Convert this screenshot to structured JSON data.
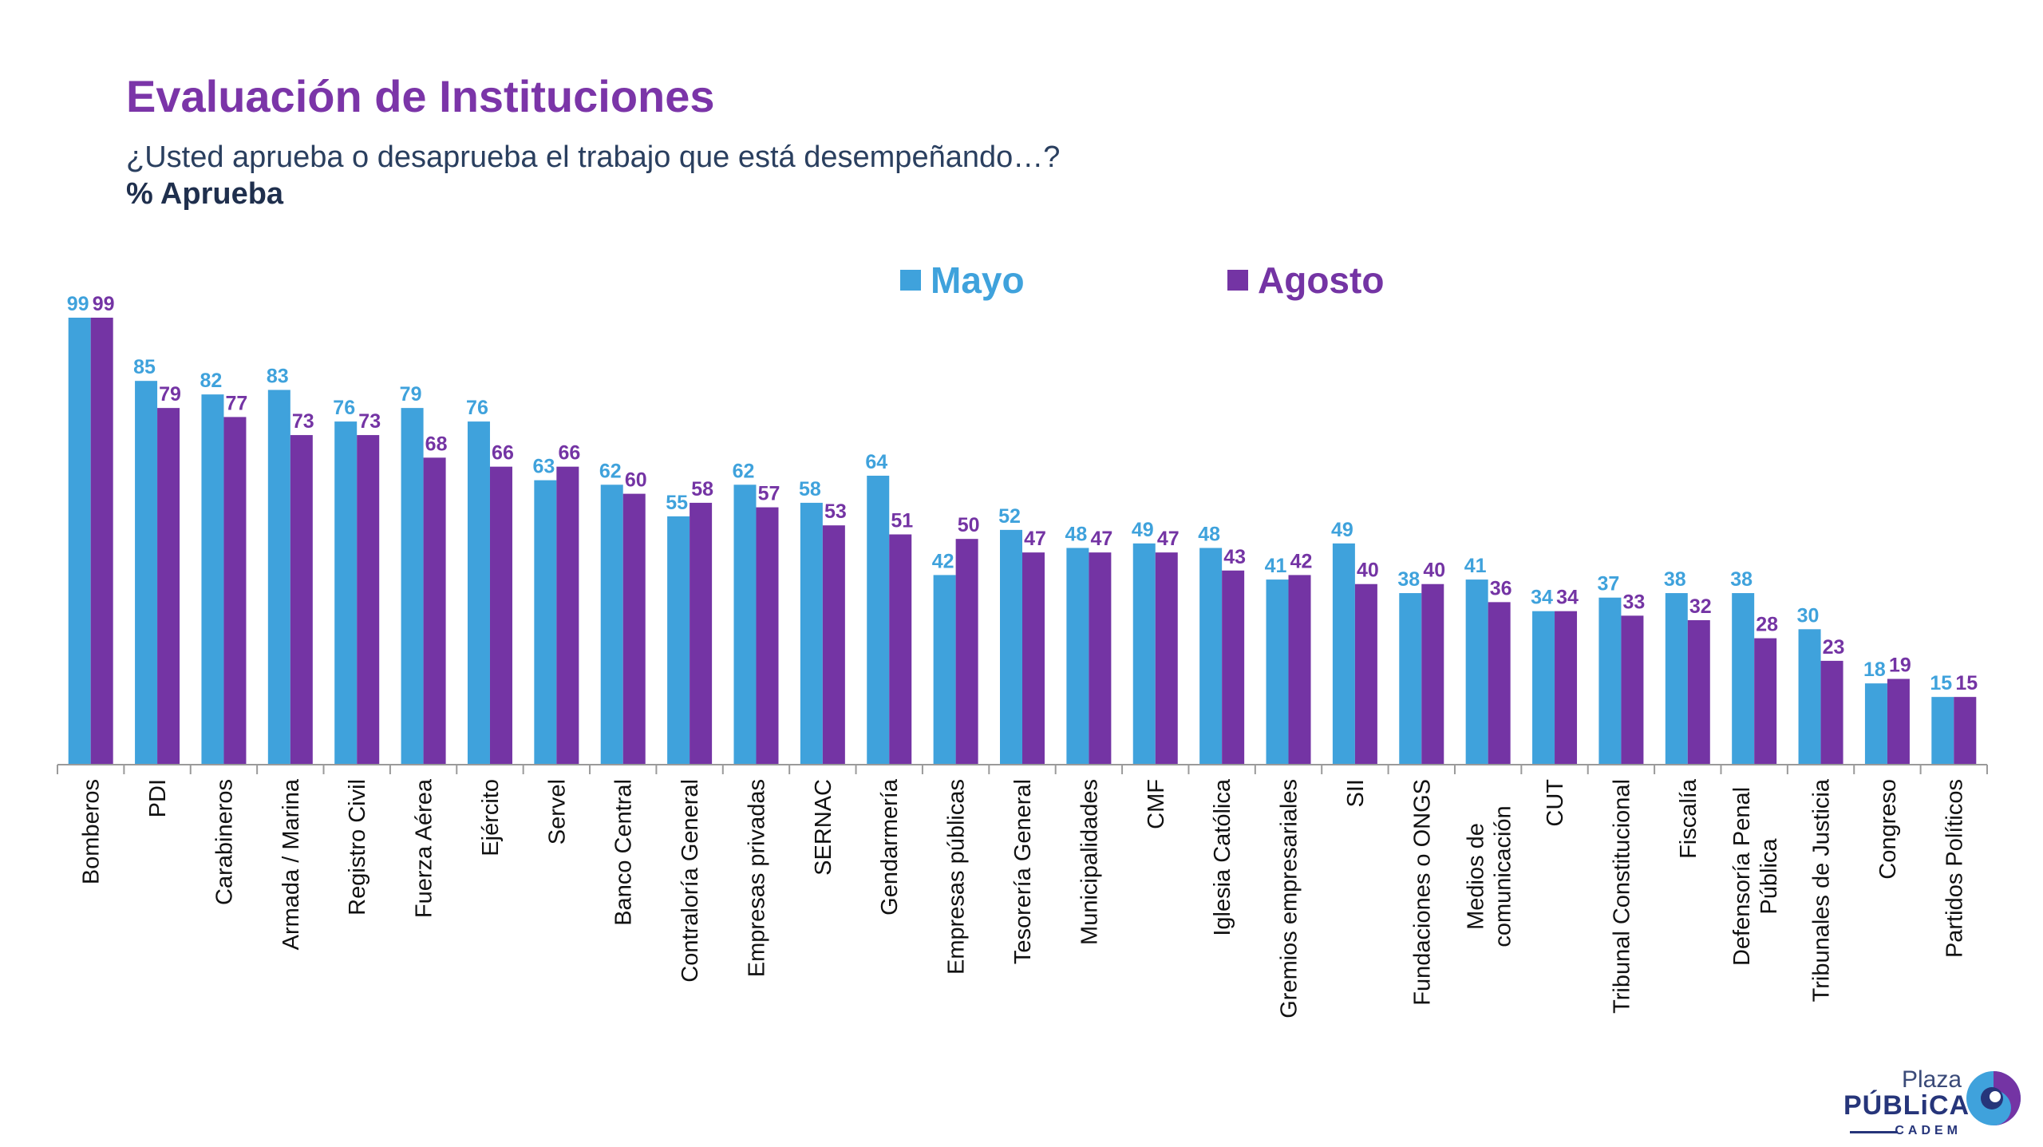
{
  "title": "Evaluación de Instituciones",
  "subtitle": "¿Usted aprueba o desaprueba el trabajo que está desempeñando…?",
  "measure": "% Aprueba",
  "logo": {
    "line1": "Plaza",
    "line2": "PÚBLiCA",
    "line3": "CADEM"
  },
  "colors": {
    "mayo": "#3FA2DC",
    "agosto": "#7434A4",
    "title": "#7B35A8"
  },
  "chart_data": {
    "type": "bar",
    "categories": [
      "Bomberos",
      "PDI",
      "Carabineros",
      "Armada / Marina",
      "Registro Civil",
      "Fuerza Aérea",
      "Ejército",
      "Servel",
      "Banco Central",
      "Contraloría General",
      "Empresas privadas",
      "SERNAC",
      "Gendarmería",
      "Empresas públicas",
      "Tesorería General",
      "Municipalidades",
      "CMF",
      "Iglesia Católica",
      "Gremios empresariales",
      "SII",
      "Fundaciones o ONGS",
      "Medios de comunicación",
      "CUT",
      "Tribunal Constitucional",
      "Fiscalía",
      "Defensoría Penal Pública",
      "Tribunales de Justicia",
      "Congreso",
      "Partidos Políticos"
    ],
    "series": [
      {
        "name": "Mayo",
        "values": [
          99,
          85,
          82,
          83,
          76,
          79,
          76,
          63,
          62,
          55,
          62,
          58,
          64,
          42,
          52,
          48,
          49,
          48,
          41,
          49,
          38,
          41,
          34,
          37,
          38,
          38,
          30,
          18,
          15
        ]
      },
      {
        "name": "Agosto",
        "values": [
          99,
          79,
          77,
          73,
          73,
          68,
          66,
          66,
          60,
          58,
          57,
          53,
          51,
          50,
          47,
          47,
          47,
          43,
          42,
          40,
          40,
          36,
          34,
          33,
          32,
          28,
          23,
          19,
          15
        ]
      }
    ],
    "ylim": [
      0,
      100
    ],
    "grid": false,
    "legend": "top-center",
    "xlabel": "",
    "ylabel": ""
  }
}
